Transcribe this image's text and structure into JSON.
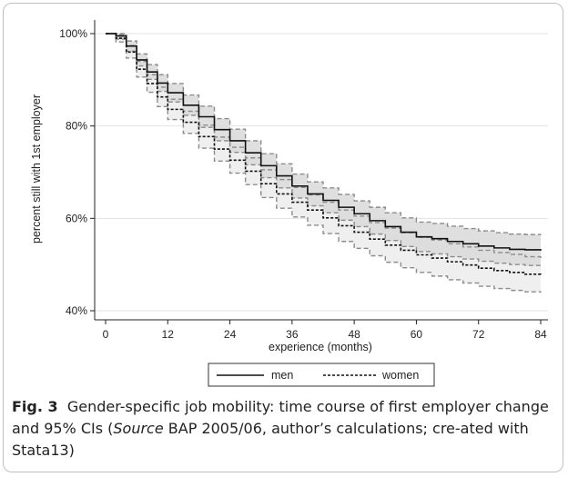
{
  "chart_data": {
    "type": "line",
    "xlabel": "experience (months)",
    "ylabel": "percent still with 1st employer",
    "xlim": [
      0,
      84
    ],
    "ylim": [
      40,
      100
    ],
    "x_ticks": [
      0,
      12,
      24,
      36,
      48,
      60,
      72,
      84
    ],
    "y_ticks": [
      40,
      60,
      80,
      100
    ],
    "x_tick_labels": [
      "0",
      "12",
      "24",
      "36",
      "48",
      "60",
      "72",
      "84"
    ],
    "y_tick_labels": [
      "40%",
      "60%",
      "80%",
      "100%"
    ],
    "grid": "horizontal",
    "legend_position": "bottom",
    "x": [
      0,
      2,
      4,
      6,
      8,
      10,
      12,
      15,
      18,
      21,
      24,
      27,
      30,
      33,
      36,
      39,
      42,
      45,
      48,
      51,
      54,
      57,
      60,
      63,
      66,
      69,
      72,
      75,
      78,
      81,
      84
    ],
    "series": [
      {
        "name": "men",
        "style": "solid",
        "values": [
          100,
          99.5,
          97.3,
          94.3,
          91.7,
          89.3,
          87.2,
          84.5,
          82,
          79.2,
          76.8,
          74.2,
          71.4,
          69.2,
          67,
          65.3,
          63.9,
          62.4,
          61,
          59.5,
          58.2,
          57,
          56,
          55.6,
          55,
          54.5,
          54,
          53.6,
          53.3,
          53.2,
          53
        ],
        "ci_lower": [
          100,
          98.8,
          96.2,
          93,
          90.1,
          87.5,
          85.2,
          82.3,
          79.7,
          76.8,
          74.3,
          71.6,
          68.8,
          66.6,
          64.4,
          62.7,
          61.2,
          59.6,
          58.2,
          56.6,
          55.2,
          53.9,
          52.8,
          52.3,
          51.7,
          51.2,
          50.7,
          50.3,
          50,
          49.8,
          49.6
        ],
        "ci_upper": [
          100,
          100,
          98.4,
          95.6,
          93.3,
          91.1,
          89.2,
          86.7,
          84.3,
          81.6,
          79.3,
          76.8,
          74,
          71.8,
          69.6,
          67.9,
          66.6,
          65.2,
          63.8,
          62.4,
          61.2,
          60.1,
          59.2,
          58.9,
          58.3,
          57.8,
          57.3,
          56.9,
          56.6,
          56.5,
          56.4
        ]
      },
      {
        "name": "women",
        "style": "dashed",
        "values": [
          100,
          99,
          96,
          92.3,
          89.2,
          86.3,
          83.6,
          80.8,
          77.7,
          75,
          72.6,
          70.2,
          67.5,
          65.3,
          63.5,
          61.8,
          60.1,
          58.4,
          57,
          55.5,
          54.2,
          53.1,
          52.1,
          51.4,
          50.6,
          49.9,
          49.2,
          48.7,
          48.3,
          47.9,
          47.6
        ],
        "ci_lower": [
          100,
          98.2,
          94.7,
          90.6,
          87.3,
          84.2,
          81.4,
          78.4,
          75.2,
          72.4,
          69.8,
          67.3,
          64.5,
          62.2,
          60.3,
          58.5,
          56.7,
          55,
          53.5,
          51.9,
          50.5,
          49.3,
          48.3,
          47.5,
          46.7,
          46,
          45.3,
          44.8,
          44.4,
          44.1,
          43.9
        ],
        "ci_upper": [
          100,
          99.8,
          97.4,
          94,
          91.1,
          88.4,
          85.8,
          83.2,
          80.2,
          77.6,
          75.4,
          73.1,
          70.5,
          68.4,
          66.7,
          65.1,
          63.5,
          61.8,
          60.5,
          59.1,
          57.9,
          56.9,
          55.9,
          55.3,
          54.5,
          53.8,
          53.1,
          52.6,
          52.2,
          51.7,
          51.3
        ]
      }
    ]
  },
  "legend": {
    "men": "men",
    "women": "women"
  },
  "caption": {
    "fig_label": "Fig. 3",
    "text_before_source": "Gender-specific job mobility: time course of first employer change and 95% CIs (",
    "source_word": "Source",
    "text_after_source": " BAP 2005/06, author’s calculations; cre-ated with Stata13)"
  },
  "colors": {
    "men_ci_fill": "#d9d9d9",
    "women_ci_fill": "#efefef",
    "ci_border": "#8c8c8c",
    "line": "#111111",
    "grid": "#e3e3e3"
  }
}
